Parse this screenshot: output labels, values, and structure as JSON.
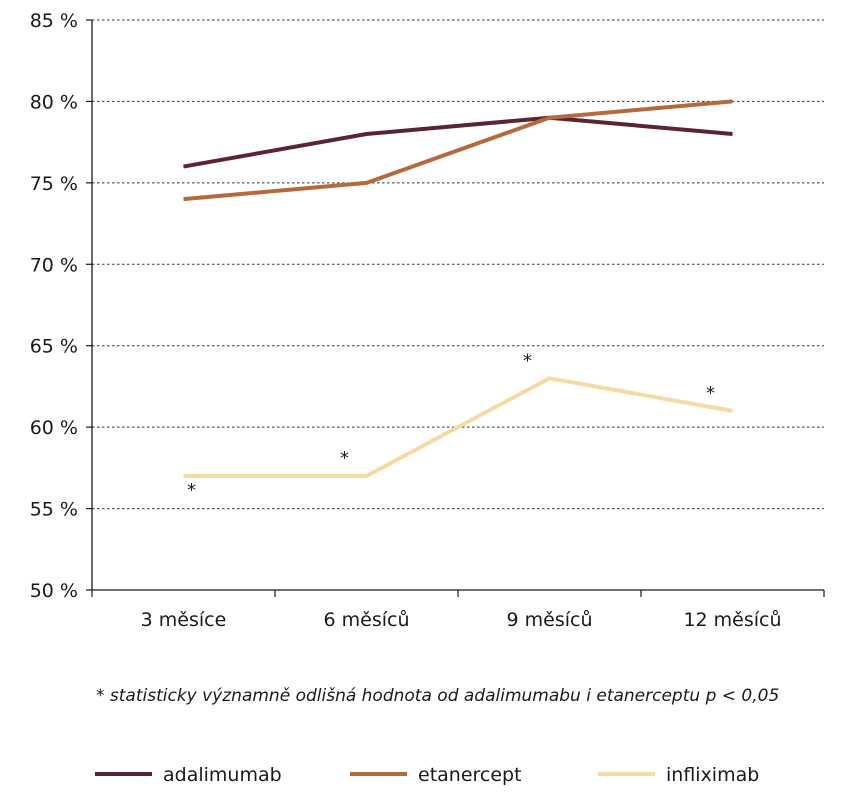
{
  "chart_data": {
    "type": "line",
    "categories": [
      "3 měsíce",
      "6 měsíců",
      "9 měsíců",
      "12 měsíců"
    ],
    "ylim": [
      50,
      85
    ],
    "yticks": [
      50,
      55,
      60,
      65,
      70,
      75,
      80,
      85
    ],
    "ytick_labels": [
      "50 %",
      "55 %",
      "60 %",
      "65 %",
      "70 %",
      "75 %",
      "80 %",
      "85 %"
    ],
    "grid": "horizontal dashed",
    "series": [
      {
        "name": "adalimumab",
        "values": [
          76,
          78,
          79,
          78
        ],
        "color": "#5a2530"
      },
      {
        "name": "etanercept",
        "values": [
          74,
          75,
          79,
          80
        ],
        "color": "#b56a3e"
      },
      {
        "name": "infliximab",
        "values": [
          57,
          57,
          63,
          61
        ],
        "color": "#f6d9a3"
      }
    ],
    "annotations": [
      {
        "text": "*",
        "category": "3 měsíce",
        "series": "infliximab",
        "position": "below"
      },
      {
        "text": "*",
        "category": "6 měsíců",
        "series": "infliximab",
        "position": "above-left"
      },
      {
        "text": "*",
        "category": "9 měsíců",
        "series": "infliximab",
        "position": "above-left"
      },
      {
        "text": "*",
        "category": "12 měsíců",
        "series": "infliximab",
        "position": "above-left"
      }
    ],
    "footnote": "* statisticky významně odlišná hodnota od adalimumabu i etanerceptu p < 0,05",
    "legend_position": "bottom"
  }
}
